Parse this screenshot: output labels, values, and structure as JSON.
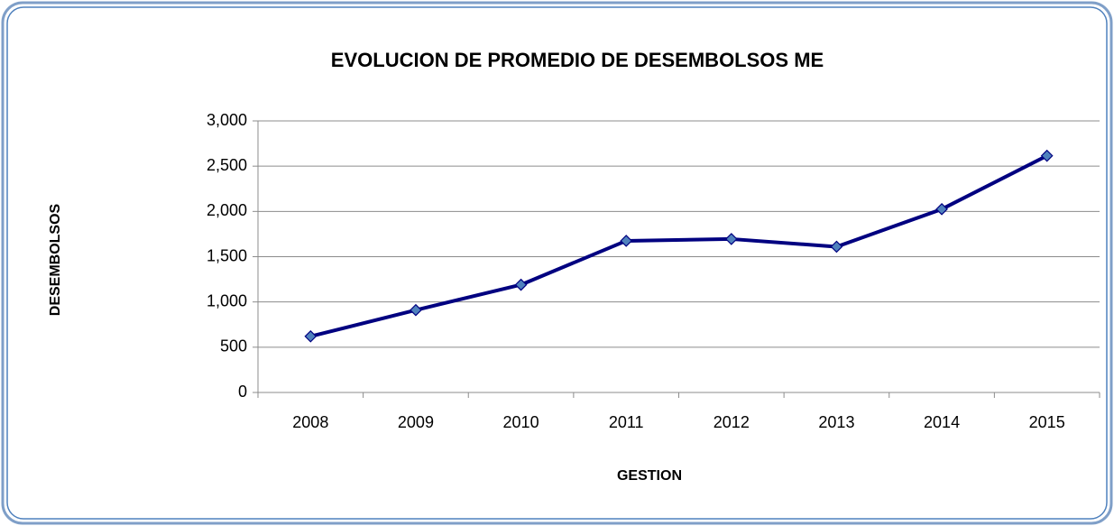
{
  "chart_data": {
    "type": "line",
    "title": "EVOLUCION DE PROMEDIO DE DESEMBOLSOS ME",
    "x_label": "GESTION",
    "y_label": "DESEMBOLSOS",
    "categories": [
      "2008",
      "2009",
      "2010",
      "2011",
      "2012",
      "2013",
      "2014",
      "2015"
    ],
    "values": [
      620,
      910,
      1190,
      1675,
      1695,
      1610,
      2025,
      2615
    ],
    "color": "#000080",
    "marker_color": "#4f81bd",
    "ylim": [
      0,
      3000
    ],
    "yticks": [
      0,
      500,
      {
        "value": 1000,
        "label": "1,000"
      },
      {
        "value": 1500,
        "label": "1,500"
      },
      {
        "value": 2000,
        "label": "2,000"
      },
      {
        "value": 2500,
        "label": "2,500"
      },
      {
        "value": 3000,
        "label": "3,000"
      }
    ],
    "grid": true
  }
}
